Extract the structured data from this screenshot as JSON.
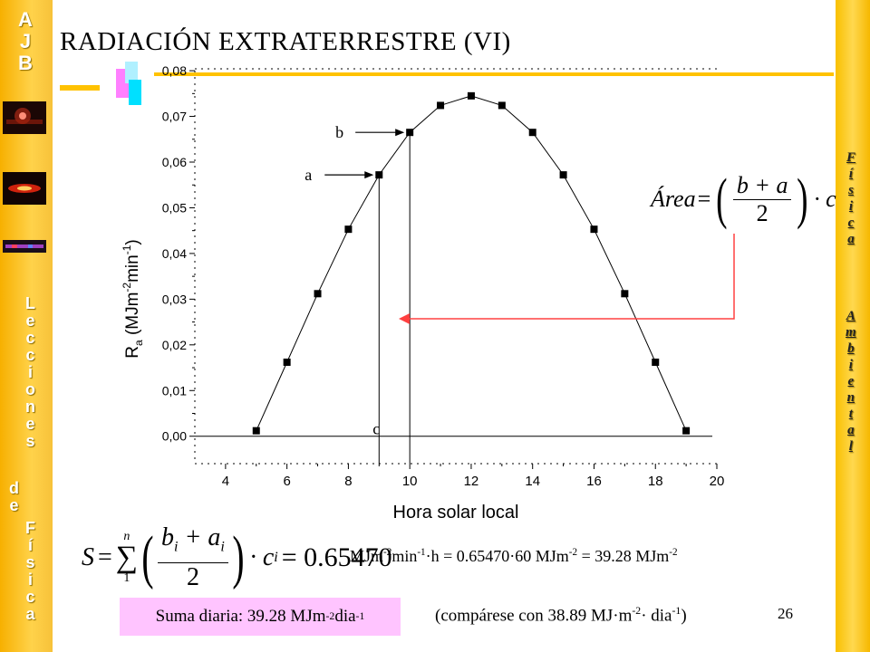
{
  "title": "RADIACIÓN EXTRATERRESTRE (VI)",
  "left_bar": {
    "logo_letters": [
      "A",
      "J",
      "B"
    ],
    "lecciones_letters": [
      "L",
      "e",
      "c",
      "c",
      "i",
      "o",
      "n",
      "e",
      "s"
    ],
    "de_letters": [
      "d",
      "e"
    ],
    "fisica_letters": [
      "F",
      "í",
      "s",
      "i",
      "c",
      "a"
    ]
  },
  "right_bar": {
    "fisica_letters": [
      "F",
      "í",
      "s",
      "i",
      "c",
      "a"
    ],
    "ambiental_letters": [
      "A",
      "m",
      "b",
      "i",
      "e",
      "n",
      "t",
      "a",
      "l"
    ]
  },
  "chart_data": {
    "type": "scatter",
    "x": [
      5,
      6,
      7,
      8,
      9,
      10,
      11,
      12,
      13,
      14,
      15,
      16,
      17,
      18,
      19
    ],
    "y": [
      0.0012,
      0.0162,
      0.0312,
      0.0453,
      0.0572,
      0.0665,
      0.0724,
      0.0745,
      0.0724,
      0.0665,
      0.0572,
      0.0453,
      0.0312,
      0.0162,
      0.0012
    ],
    "xlabel": "Hora solar local",
    "ylabel_main": "R",
    "ylabel_sub": "a",
    "ylabel_unit_open": " (MJm",
    "ylabel_exp1": "-2",
    "ylabel_unit_mid": "min",
    "ylabel_exp2": "-1",
    "ylabel_unit_close": ")",
    "xlim": [
      3,
      20
    ],
    "ylim": [
      -0.006,
      0.082
    ],
    "xticks": [
      4,
      6,
      8,
      10,
      12,
      14,
      16,
      18,
      20
    ],
    "xtick_labels": [
      "4",
      "6",
      "8",
      "10",
      "12",
      "14",
      "16",
      "18",
      "20"
    ],
    "yticks": [
      0.0,
      0.01,
      0.02,
      0.03,
      0.04,
      0.05,
      0.06,
      0.07,
      0.08
    ],
    "ytick_labels": [
      "0,00",
      "0,01",
      "0,02",
      "0,03",
      "0,04",
      "0,05",
      "0,06",
      "0,07",
      "0,08"
    ],
    "series_line": "connected",
    "annotations": [
      {
        "text": "a",
        "x": 9,
        "y": 0.0572
      },
      {
        "text": "b",
        "x": 10,
        "y": 0.0665
      },
      {
        "text": "c",
        "x": 9.5,
        "y": 0.0
      }
    ],
    "trapezoid_edges_x": [
      9,
      10
    ]
  },
  "formula_area": {
    "lhs": "Área",
    "eq": "=",
    "num": "b + a",
    "den": "2",
    "rhs": "· c"
  },
  "formula_sum": {
    "lhs": "S",
    "eq": "=",
    "sum_top": "n",
    "sum_bottom": "1",
    "sum_symbol": "∑",
    "num": "b",
    "num_sub1": "i",
    "num_plus": " + a",
    "num_sub2": "i",
    "den": "2",
    "mult": "· c",
    "mult_sub": "i",
    "result": "= 0.65470",
    "units": {
      "u1": "MJm",
      "u1_exp": "-2",
      "u2": "min",
      "u2_exp": "-1",
      "u3": "·h = 0.65470·60 MJm",
      "u3_exp": "-2",
      "u4": " = 39.28 MJm",
      "u4_exp": "-2"
    }
  },
  "suma_diaria": {
    "text": "Suma diaria: 39.28 MJm",
    "exp1": "-2",
    "text2": "dia",
    "exp2": "-1"
  },
  "comparese": {
    "text": "(compárese con 38.89 MJ·m",
    "exp1": "-2",
    "text2": "· dia",
    "exp2": "-1",
    "close": ")"
  },
  "slide_number": "26",
  "colors": {
    "gold": "#f7b000",
    "arrow_red": "#ff4040",
    "suma_bg": "#ffc4ff",
    "deco_orange": "#ffc200",
    "deco_pink": "#ff80ff",
    "deco_cyan": "#00e0ff"
  }
}
